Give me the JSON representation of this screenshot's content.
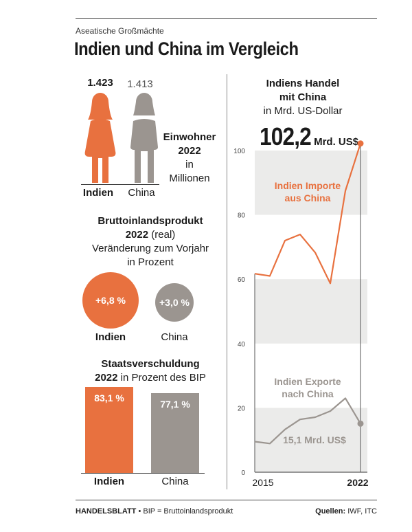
{
  "kicker": "Aseatische Großmächte",
  "title": "Indien und China im Vergleich",
  "colors": {
    "india": "#e8713f",
    "china": "#9b9590",
    "band": "#ebebea"
  },
  "population": {
    "india_value": "1.423",
    "china_value": "1.413",
    "title_line1": "Einwohner",
    "title_line2": "2022",
    "title_line3": "in",
    "title_line4": "Millionen",
    "india_label": "Indien",
    "china_label": "China",
    "india_icon": "woman-figure-icon",
    "china_icon": "woman-figure-icon"
  },
  "gdp": {
    "title_line1": "Bruttoinlandsprodukt",
    "title_line2_bold": "2022",
    "title_line2_rest": "(real)",
    "title_line3": "Veränderung zum Vorjahr",
    "title_line4": "in Prozent",
    "india_value": "+6,8 %",
    "china_value": "+3,0 %",
    "india_label": "Indien",
    "china_label": "China"
  },
  "debt": {
    "title_line1": "Staatsverschuldung",
    "title_line2_bold": "2022",
    "title_line2_rest": "in Prozent des BIP",
    "india_value": "83,1 %",
    "china_value": "77,1 %",
    "india_label": "Indien",
    "china_label": "China"
  },
  "trade": {
    "title_line1": "Indiens Handel",
    "title_line2": "mit China",
    "title_line3": "in Mrd. US-Dollar",
    "big_value": "102,2",
    "big_unit": "Mrd. US$",
    "imports_label_line1": "Indien Importe",
    "imports_label_line2": "aus China",
    "exports_label_line1": "Indien Exporte",
    "exports_label_line2": "nach China",
    "exports_end_value": "15,1 Mrd. US$"
  },
  "footer": {
    "brand": "HANDELSBLATT",
    "note": " • BIP = Bruttoinlandsprodukt",
    "sources_label": "Quellen:",
    "sources_value": " IWF, ITC"
  },
  "chart_data": [
    {
      "type": "bar",
      "categories": [
        "Indien",
        "China"
      ],
      "values": [
        1423,
        1413
      ],
      "title": "Einwohner 2022 in Millionen"
    },
    {
      "type": "bar",
      "categories": [
        "Indien",
        "China"
      ],
      "values": [
        6.8,
        3.0
      ],
      "title": "Bruttoinlandsprodukt 2022 (real) Veränderung zum Vorjahr in Prozent"
    },
    {
      "type": "bar",
      "categories": [
        "Indien",
        "China"
      ],
      "values": [
        83.1,
        77.1
      ],
      "title": "Staatsverschuldung 2022 in Prozent des BIP"
    },
    {
      "type": "line",
      "title": "Indiens Handel mit China in Mrd. US-Dollar",
      "x": [
        2015,
        2016,
        2017,
        2018,
        2019,
        2020,
        2021,
        2022
      ],
      "x_ticks": [
        "2015",
        "2022"
      ],
      "ylim": [
        0,
        100
      ],
      "y_ticks": [
        0,
        20,
        40,
        60,
        80,
        100
      ],
      "grid": "alternating bands",
      "series": [
        {
          "name": "Indien Importe aus China",
          "values": [
            61.7,
            61.0,
            72.0,
            73.9,
            68.3,
            58.7,
            87.5,
            102.2
          ]
        },
        {
          "name": "Indien Exporte nach China",
          "values": [
            9.5,
            8.9,
            13.3,
            16.4,
            17.1,
            19.0,
            23.0,
            15.1
          ]
        }
      ]
    }
  ]
}
